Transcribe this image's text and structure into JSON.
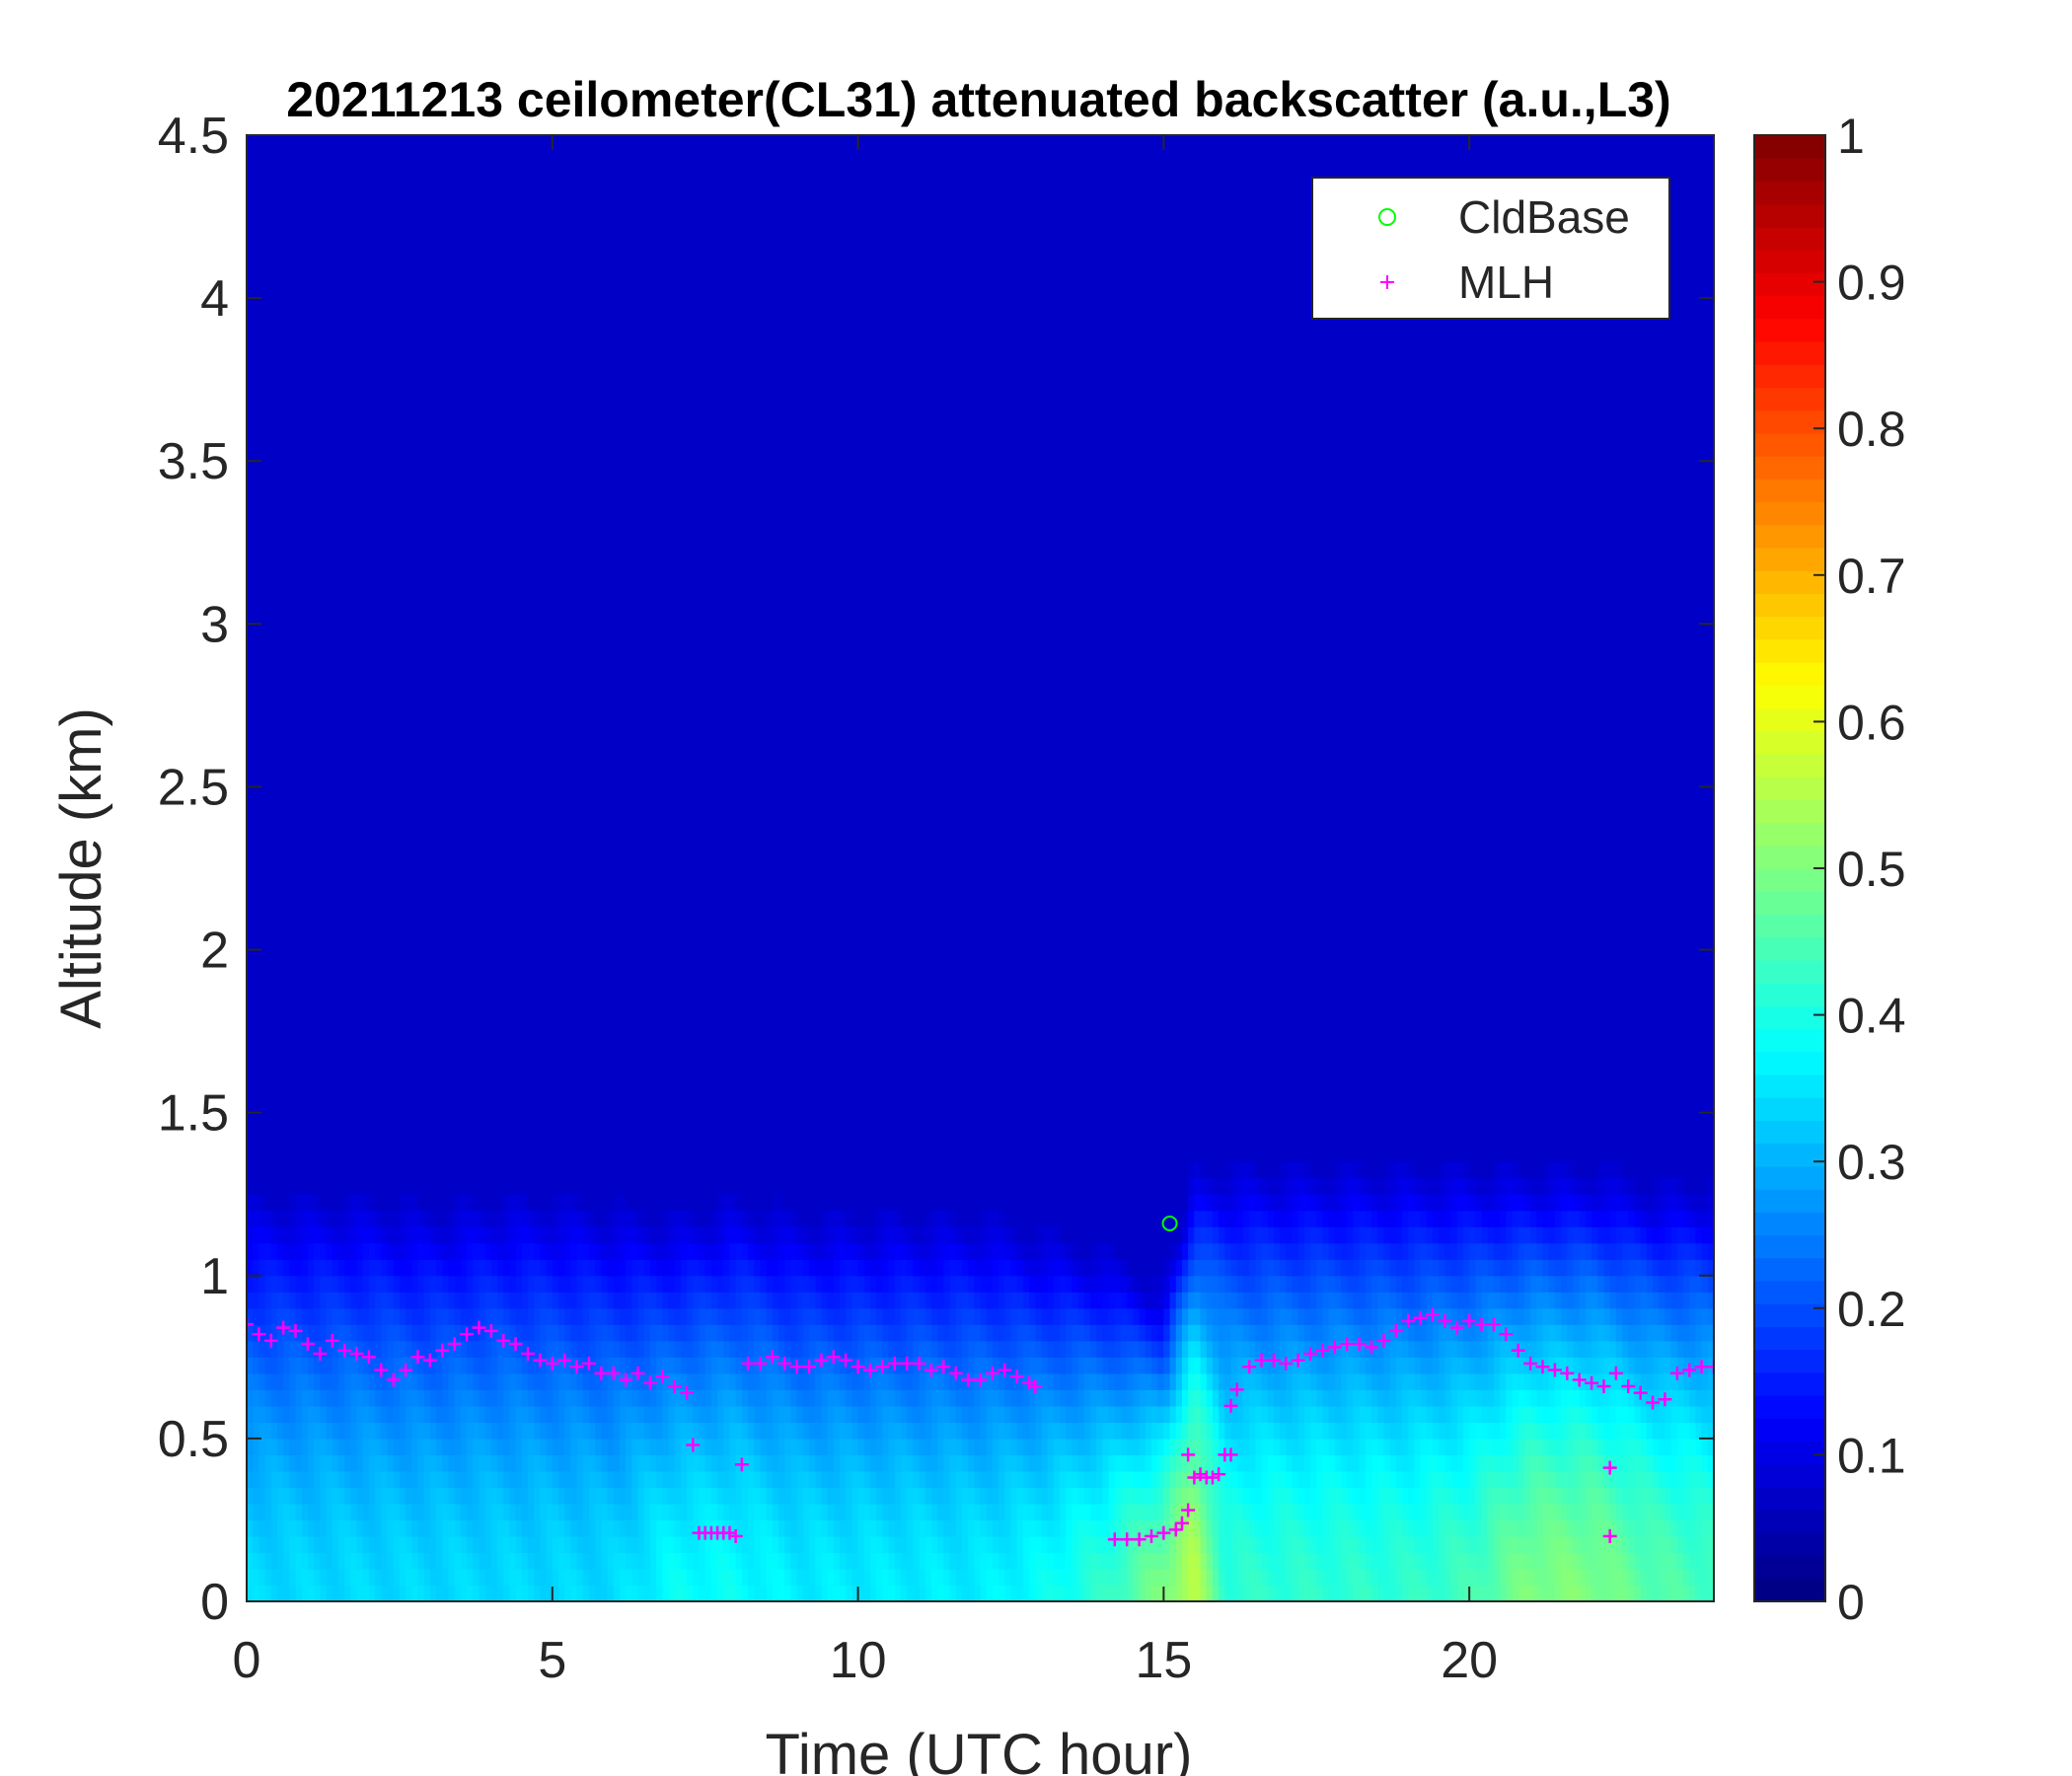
{
  "chart_data": {
    "type": "heatmap",
    "title": "20211213 ceilometer(CL31) attenuated backscatter (a.u.,L3)",
    "xlabel": "Time (UTC hour)",
    "ylabel": "Altitude (km)",
    "xlim": [
      0,
      24
    ],
    "ylim": [
      0,
      4.5
    ],
    "xticks": [
      0,
      5,
      10,
      15,
      20
    ],
    "xtick_labels": [
      "0",
      "5",
      "10",
      "15",
      "20"
    ],
    "yticks": [
      0,
      0.5,
      1,
      1.5,
      2,
      2.5,
      3,
      3.5,
      4,
      4.5
    ],
    "ytick_labels": [
      "0",
      "0.5",
      "1",
      "1.5",
      "2",
      "2.5",
      "3",
      "3.5",
      "4",
      "4.5"
    ],
    "colorbar": {
      "colormap": "jet",
      "range": [
        0,
        1
      ],
      "ticks": [
        0,
        0.1,
        0.2,
        0.3,
        0.4,
        0.5,
        0.6,
        0.7,
        0.8,
        0.9,
        1
      ],
      "tick_labels": [
        "0",
        "0.1",
        "0.2",
        "0.3",
        "0.4",
        "0.5",
        "0.6",
        "0.7",
        "0.8",
        "0.9",
        "1"
      ]
    },
    "heatmap_profile": {
      "x": [
        0,
        1,
        2,
        3,
        4,
        5,
        6,
        7,
        8,
        9,
        10,
        11,
        12,
        13,
        14,
        15,
        15.5,
        16,
        17,
        18,
        19,
        20,
        21,
        22,
        23,
        24
      ],
      "layer_top_km": [
        1.15,
        1.15,
        1.15,
        1.12,
        1.15,
        1.15,
        1.12,
        1.1,
        1.15,
        1.1,
        1.1,
        1.1,
        1.1,
        1.05,
        1.0,
        0.9,
        1.25,
        1.25,
        1.25,
        1.25,
        1.25,
        1.25,
        1.25,
        1.25,
        1.2,
        1.2
      ],
      "surface_value": [
        0.34,
        0.34,
        0.34,
        0.34,
        0.34,
        0.34,
        0.34,
        0.38,
        0.38,
        0.36,
        0.36,
        0.36,
        0.36,
        0.38,
        0.42,
        0.5,
        0.56,
        0.42,
        0.42,
        0.42,
        0.42,
        0.44,
        0.5,
        0.5,
        0.46,
        0.44
      ]
    },
    "legend": {
      "location": "top-right",
      "entries": [
        {
          "label": "CldBase",
          "marker": "circle",
          "color": "#00ff00"
        },
        {
          "label": "MLH",
          "marker": "plus",
          "color": "#ff00ff"
        }
      ]
    },
    "series": [
      {
        "name": "CldBase",
        "marker": "circle",
        "color": "#00ff00",
        "x": [
          15.1
        ],
        "y": [
          1.16
        ]
      },
      {
        "name": "MLH",
        "marker": "plus",
        "color": "#ff00ff",
        "x": [
          0,
          0.2,
          0.4,
          0.6,
          0.8,
          1.0,
          1.2,
          1.4,
          1.6,
          1.8,
          2.0,
          2.2,
          2.4,
          2.6,
          2.8,
          3.0,
          3.2,
          3.4,
          3.6,
          3.8,
          4.0,
          4.2,
          4.4,
          4.6,
          4.8,
          5.0,
          5.2,
          5.4,
          5.6,
          5.8,
          6.0,
          6.2,
          6.4,
          6.6,
          6.8,
          7.0,
          7.2,
          7.3,
          7.4,
          7.5,
          7.6,
          7.7,
          7.8,
          7.9,
          8.0,
          8.1,
          8.2,
          8.4,
          8.6,
          8.8,
          9.0,
          9.2,
          9.4,
          9.6,
          9.8,
          10.0,
          10.2,
          10.4,
          10.6,
          10.8,
          11.0,
          11.2,
          11.4,
          11.6,
          11.8,
          12.0,
          12.2,
          12.4,
          12.6,
          12.8,
          12.9,
          14.2,
          14.4,
          14.6,
          14.8,
          15.0,
          15.2,
          15.3,
          15.4,
          15.5,
          15.6,
          15.7,
          15.8,
          15.9,
          16.0,
          16.1,
          16.2,
          16.4,
          16.6,
          16.8,
          17.0,
          17.2,
          17.4,
          17.6,
          17.8,
          18.0,
          18.2,
          18.4,
          18.6,
          18.8,
          19.0,
          19.2,
          19.4,
          19.6,
          19.8,
          20.0,
          20.2,
          20.4,
          20.6,
          20.8,
          21.0,
          21.2,
          21.4,
          21.6,
          21.8,
          22.0,
          22.2,
          22.3,
          22.4,
          22.6,
          22.8,
          23.0,
          23.2,
          23.4,
          23.6,
          23.8,
          24.0
        ],
        "y": [
          0.85,
          0.82,
          0.8,
          0.84,
          0.83,
          0.79,
          0.76,
          0.8,
          0.77,
          0.76,
          0.75,
          0.71,
          0.68,
          0.71,
          0.75,
          0.74,
          0.77,
          0.79,
          0.82,
          0.84,
          0.83,
          0.8,
          0.79,
          0.76,
          0.74,
          0.73,
          0.74,
          0.72,
          0.73,
          0.7,
          0.7,
          0.68,
          0.7,
          0.67,
          0.69,
          0.66,
          0.64,
          0.48,
          0.21,
          0.21,
          0.21,
          0.21,
          0.21,
          0.21,
          0.2,
          0.42,
          0.73,
          0.73,
          0.75,
          0.73,
          0.72,
          0.72,
          0.74,
          0.75,
          0.74,
          0.72,
          0.71,
          0.72,
          0.73,
          0.73,
          0.73,
          0.71,
          0.72,
          0.7,
          0.68,
          0.68,
          0.7,
          0.71,
          0.69,
          0.67,
          0.66,
          0.19,
          0.19,
          0.19,
          0.2,
          0.21,
          0.22,
          0.24,
          0.28,
          0.38,
          0.39,
          0.38,
          0.38,
          0.39,
          0.45,
          0.6,
          0.65,
          0.72,
          0.74,
          0.74,
          0.73,
          0.74,
          0.76,
          0.77,
          0.78,
          0.79,
          0.79,
          0.78,
          0.8,
          0.83,
          0.86,
          0.87,
          0.88,
          0.86,
          0.84,
          0.86,
          0.85,
          0.85,
          0.82,
          0.77,
          0.73,
          0.72,
          0.71,
          0.7,
          0.68,
          0.67,
          0.66,
          0.2,
          0.7,
          0.66,
          0.64,
          0.61,
          0.62,
          0.7,
          0.71,
          0.72,
          0.72
        ]
      },
      {
        "name": "",
        "marker": "plus",
        "color": "#ff00ff",
        "x": [
          15.4,
          16.1,
          22.3
        ],
        "y": [
          0.45,
          0.45,
          0.41
        ]
      }
    ]
  }
}
